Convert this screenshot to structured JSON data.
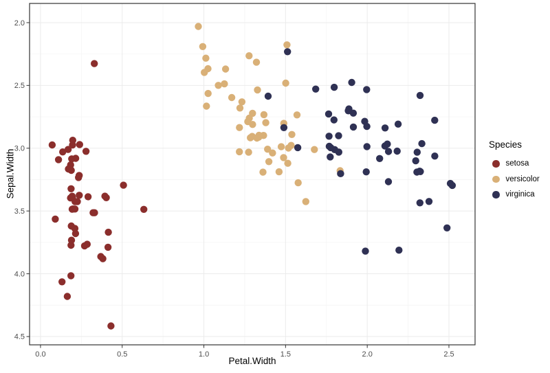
{
  "chart_data": {
    "type": "scatter",
    "title": "",
    "xlabel": "Petal.Width",
    "ylabel": "Sepal.Width",
    "x_ticks": {
      "values": [
        0.0,
        0.5,
        1.0,
        1.5,
        2.0,
        2.5
      ],
      "labels": [
        "0.0",
        "0.5",
        "1.0",
        "1.5",
        "2.0",
        "2.5"
      ]
    },
    "y_ticks": {
      "values": [
        2.0,
        2.5,
        3.0,
        3.5,
        4.0,
        4.5
      ],
      "labels": [
        "2.0",
        "2.5",
        "3.0",
        "3.5",
        "4.0",
        "4.5"
      ]
    },
    "x_domain": [
      -0.067,
      2.66
    ],
    "y_domain": [
      1.847,
      4.566
    ],
    "y_reversed": true,
    "grid": {
      "major_color": "#ebebeb",
      "minor_color": "#f5f5f5",
      "shown": true
    },
    "panel_border_color": "#333333",
    "background_color": "#ffffff",
    "tick_label_color": "#4d4d4d",
    "point_radius": 5.2,
    "jitter_amount": 0.04,
    "legend": {
      "title": "Species",
      "position": "right"
    },
    "series": [
      {
        "name": "setosa",
        "color": "#8b2e2c",
        "points": [
          [
            0.2,
            3.5
          ],
          [
            0.2,
            3.0
          ],
          [
            0.2,
            3.2
          ],
          [
            0.2,
            3.1
          ],
          [
            0.2,
            3.6
          ],
          [
            0.4,
            3.9
          ],
          [
            0.3,
            3.4
          ],
          [
            0.2,
            3.4
          ],
          [
            0.2,
            2.9
          ],
          [
            0.1,
            3.1
          ],
          [
            0.2,
            3.7
          ],
          [
            0.2,
            3.4
          ],
          [
            0.1,
            3.0
          ],
          [
            0.1,
            3.0
          ],
          [
            0.2,
            4.0
          ],
          [
            0.4,
            4.4
          ],
          [
            0.4,
            3.9
          ],
          [
            0.3,
            3.5
          ],
          [
            0.3,
            3.8
          ],
          [
            0.3,
            3.8
          ],
          [
            0.2,
            3.4
          ],
          [
            0.4,
            3.7
          ],
          [
            0.2,
            3.6
          ],
          [
            0.5,
            3.3
          ],
          [
            0.2,
            3.4
          ],
          [
            0.2,
            3.0
          ],
          [
            0.4,
            3.4
          ],
          [
            0.2,
            3.5
          ],
          [
            0.2,
            3.4
          ],
          [
            0.2,
            3.2
          ],
          [
            0.2,
            3.1
          ],
          [
            0.4,
            3.4
          ],
          [
            0.1,
            4.1
          ],
          [
            0.2,
            4.2
          ],
          [
            0.2,
            3.1
          ],
          [
            0.2,
            3.2
          ],
          [
            0.2,
            3.5
          ],
          [
            0.1,
            3.6
          ],
          [
            0.2,
            3.0
          ],
          [
            0.2,
            3.4
          ],
          [
            0.3,
            3.5
          ],
          [
            0.3,
            2.3
          ],
          [
            0.2,
            3.2
          ],
          [
            0.6,
            3.5
          ],
          [
            0.4,
            3.8
          ],
          [
            0.3,
            3.0
          ],
          [
            0.2,
            3.8
          ],
          [
            0.2,
            3.2
          ],
          [
            0.2,
            3.7
          ],
          [
            0.2,
            3.3
          ]
        ]
      },
      {
        "name": "versicolor",
        "color": "#d9b077",
        "points": [
          [
            1.4,
            3.2
          ],
          [
            1.5,
            3.2
          ],
          [
            1.5,
            3.1
          ],
          [
            1.3,
            2.3
          ],
          [
            1.5,
            2.8
          ],
          [
            1.3,
            2.8
          ],
          [
            1.6,
            3.3
          ],
          [
            1.0,
            2.4
          ],
          [
            1.3,
            2.9
          ],
          [
            1.4,
            2.7
          ],
          [
            1.0,
            2.0
          ],
          [
            1.5,
            3.0
          ],
          [
            1.0,
            2.2
          ],
          [
            1.4,
            2.9
          ],
          [
            1.3,
            2.9
          ],
          [
            1.4,
            3.1
          ],
          [
            1.5,
            3.0
          ],
          [
            1.0,
            2.7
          ],
          [
            1.5,
            2.2
          ],
          [
            1.1,
            2.5
          ],
          [
            1.8,
            3.2
          ],
          [
            1.3,
            2.8
          ],
          [
            1.5,
            2.5
          ],
          [
            1.2,
            2.8
          ],
          [
            1.3,
            2.9
          ],
          [
            1.4,
            3.0
          ],
          [
            1.4,
            2.8
          ],
          [
            1.7,
            3.0
          ],
          [
            1.5,
            2.9
          ],
          [
            1.0,
            2.6
          ],
          [
            1.1,
            2.4
          ],
          [
            1.0,
            2.4
          ],
          [
            1.2,
            2.7
          ],
          [
            1.6,
            2.7
          ],
          [
            1.5,
            3.0
          ],
          [
            1.6,
            3.4
          ],
          [
            1.5,
            3.1
          ],
          [
            1.3,
            2.3
          ],
          [
            1.3,
            3.0
          ],
          [
            1.3,
            2.5
          ],
          [
            1.2,
            2.6
          ],
          [
            1.4,
            3.0
          ],
          [
            1.2,
            2.6
          ],
          [
            1.0,
            2.3
          ],
          [
            1.3,
            2.7
          ],
          [
            1.2,
            3.0
          ],
          [
            1.3,
            2.9
          ],
          [
            1.3,
            2.9
          ],
          [
            1.1,
            2.5
          ],
          [
            1.3,
            2.8
          ]
        ]
      },
      {
        "name": "virginica",
        "color": "#2f3154",
        "points": [
          [
            2.5,
            3.3
          ],
          [
            1.9,
            2.7
          ],
          [
            2.1,
            3.0
          ],
          [
            1.8,
            2.9
          ],
          [
            2.2,
            3.0
          ],
          [
            2.1,
            3.0
          ],
          [
            1.7,
            2.5
          ],
          [
            1.8,
            2.9
          ],
          [
            1.8,
            2.5
          ],
          [
            2.5,
            3.6
          ],
          [
            2.0,
            3.2
          ],
          [
            1.9,
            2.7
          ],
          [
            2.1,
            3.0
          ],
          [
            2.0,
            2.5
          ],
          [
            2.4,
            2.8
          ],
          [
            2.3,
            3.2
          ],
          [
            1.8,
            3.0
          ],
          [
            2.2,
            3.8
          ],
          [
            2.3,
            2.6
          ],
          [
            1.5,
            2.2
          ],
          [
            2.3,
            3.2
          ],
          [
            2.0,
            2.8
          ],
          [
            2.0,
            2.8
          ],
          [
            1.8,
            2.7
          ],
          [
            2.1,
            3.3
          ],
          [
            1.8,
            3.2
          ],
          [
            1.8,
            2.8
          ],
          [
            1.8,
            3.0
          ],
          [
            2.1,
            2.8
          ],
          [
            1.6,
            3.0
          ],
          [
            1.9,
            2.8
          ],
          [
            2.0,
            3.8
          ],
          [
            2.2,
            2.8
          ],
          [
            1.5,
            2.8
          ],
          [
            1.4,
            2.6
          ],
          [
            2.3,
            3.0
          ],
          [
            2.4,
            3.4
          ],
          [
            1.8,
            3.1
          ],
          [
            1.8,
            3.0
          ],
          [
            2.1,
            3.1
          ],
          [
            2.4,
            3.1
          ],
          [
            2.3,
            3.1
          ],
          [
            1.9,
            2.7
          ],
          [
            2.3,
            3.2
          ],
          [
            2.5,
            3.3
          ],
          [
            2.3,
            3.0
          ],
          [
            1.9,
            2.5
          ],
          [
            2.0,
            3.0
          ],
          [
            2.3,
            3.4
          ],
          [
            1.8,
            3.0
          ]
        ]
      }
    ]
  }
}
